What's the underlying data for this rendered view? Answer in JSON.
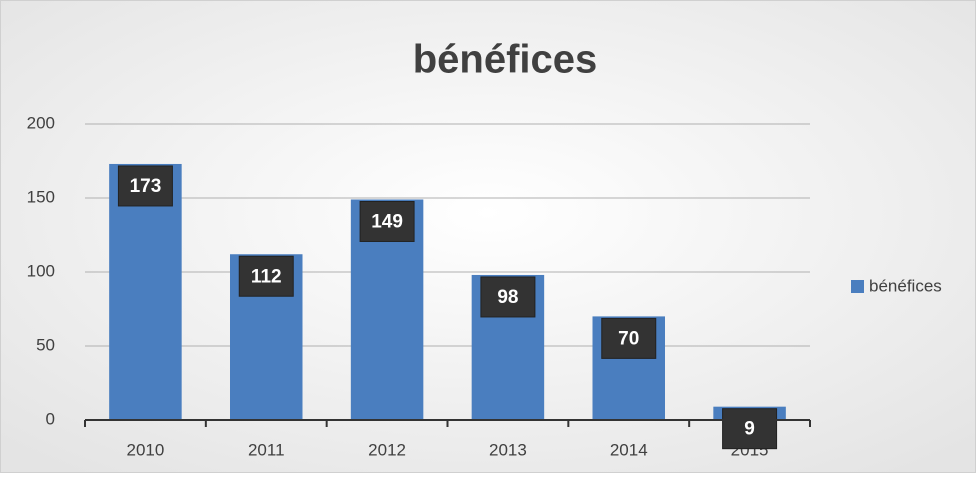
{
  "chart_data": {
    "type": "bar",
    "title": "bénéfices",
    "categories": [
      "2010",
      "2011",
      "2012",
      "2013",
      "2014",
      "2015"
    ],
    "series": [
      {
        "name": "bénéfices",
        "color": "#4a7ebf",
        "values": [
          173,
          112,
          149,
          98,
          70,
          9
        ]
      }
    ],
    "ylim": [
      0,
      200
    ],
    "yticks": [
      0,
      50,
      100,
      150,
      200
    ],
    "grid": true,
    "legend": "right"
  }
}
